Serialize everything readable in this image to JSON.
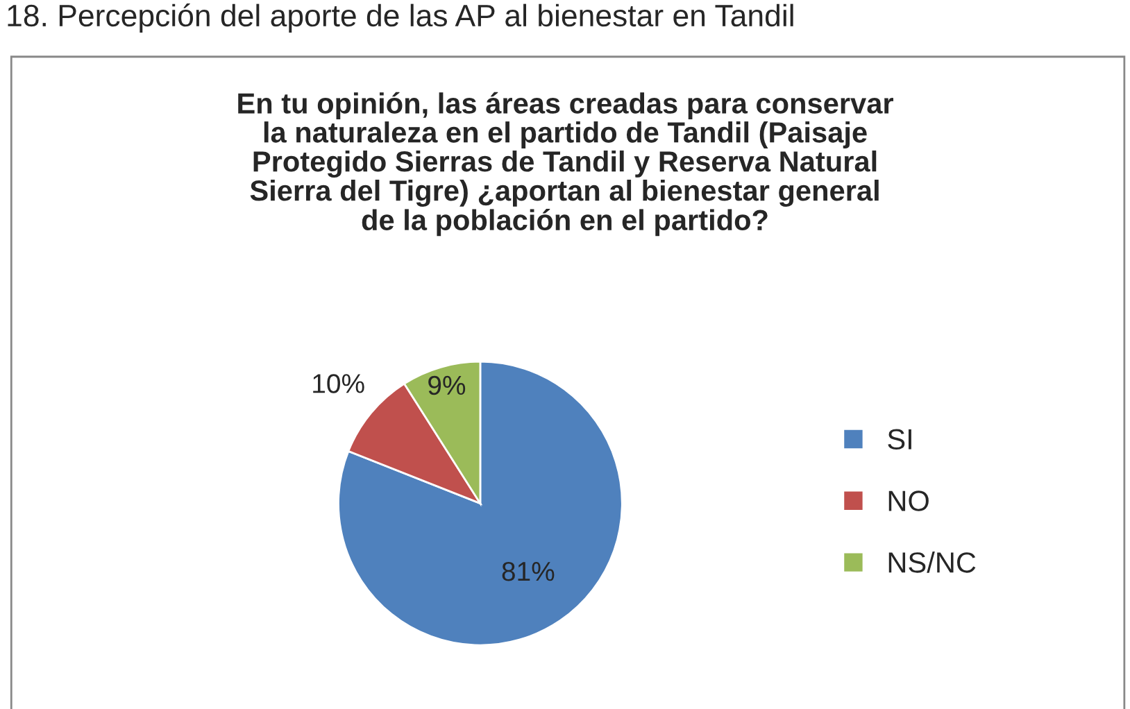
{
  "chart_data": {
    "type": "pie",
    "title": "En tu opinión, las áreas creadas para conservar\nla naturaleza en el partido de Tandil (Paisaje\nProtegido Sierras de Tandil y Reserva Natural\nSierra del Tigre) ¿aportan al bienestar general\nde la población en el partido?",
    "annotations": [
      "18. Percepción del aporte de las AP al bienestar en Tandil"
    ],
    "categories": [
      "SI",
      "NO",
      "NS/NC"
    ],
    "values": [
      81,
      10,
      9
    ],
    "colors": [
      "#4f81bd",
      "#c0504d",
      "#9bbb59"
    ],
    "value_labels": [
      "81%",
      "10%",
      "9%"
    ],
    "legend": "right"
  }
}
